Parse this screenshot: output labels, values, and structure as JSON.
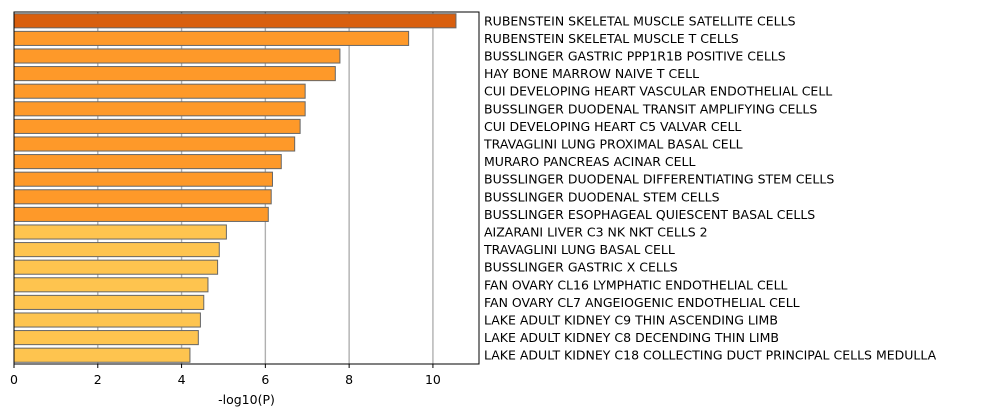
{
  "chart_data": {
    "type": "bar",
    "orientation": "horizontal",
    "xlabel": "-log10(P)",
    "xlim": [
      0,
      11.1
    ],
    "xticks": [
      0,
      2,
      4,
      6,
      8,
      10
    ],
    "grid": {
      "x": true,
      "y": false
    },
    "categories": [
      "RUBENSTEIN SKELETAL MUSCLE SATELLITE CELLS",
      "RUBENSTEIN SKELETAL MUSCLE T CELLS",
      "BUSSLINGER GASTRIC PPP1R1B POSITIVE CELLS",
      "HAY BONE MARROW NAIVE T CELL",
      "CUI DEVELOPING HEART VASCULAR ENDOTHELIAL CELL",
      "BUSSLINGER DUODENAL TRANSIT AMPLIFYING CELLS",
      "CUI DEVELOPING HEART C5 VALVAR CELL",
      "TRAVAGLINI LUNG PROXIMAL BASAL CELL",
      "MURARO PANCREAS ACINAR CELL",
      "BUSSLINGER DUODENAL DIFFERENTIATING STEM CELLS",
      "BUSSLINGER DUODENAL STEM CELLS",
      "BUSSLINGER ESOPHAGEAL QUIESCENT BASAL CELLS",
      "AIZARANI LIVER C3 NK NKT CELLS 2",
      "TRAVAGLINI LUNG BASAL CELL",
      "BUSSLINGER GASTRIC X CELLS",
      "FAN OVARY CL16 LYMPHATIC ENDOTHELIAL CELL",
      "FAN OVARY CL7 ANGEIOGENIC ENDOTHELIAL CELL",
      "LAKE ADULT KIDNEY C9 THIN ASCENDING LIMB",
      "LAKE ADULT KIDNEY C8 DECENDING THIN LIMB",
      "LAKE ADULT KIDNEY C18 COLLECTING DUCT PRINCIPAL CELLS MEDULLA"
    ],
    "values": [
      10.55,
      9.42,
      7.78,
      7.67,
      6.95,
      6.95,
      6.83,
      6.7,
      6.38,
      6.17,
      6.14,
      6.07,
      5.07,
      4.9,
      4.86,
      4.63,
      4.53,
      4.45,
      4.4,
      4.2
    ],
    "bar_colors": [
      "#d95f0e",
      "#fe9929",
      "#fe9929",
      "#fe9929",
      "#fe9929",
      "#fe9929",
      "#fe9929",
      "#fe9929",
      "#fe9929",
      "#fe9929",
      "#fe9929",
      "#fe9929",
      "#fec44f",
      "#fec44f",
      "#fec44f",
      "#fec44f",
      "#fec44f",
      "#fec44f",
      "#fec44f",
      "#fec44f"
    ],
    "bar_edge_color": "#666666",
    "grid_color": "#b0b0b0"
  }
}
